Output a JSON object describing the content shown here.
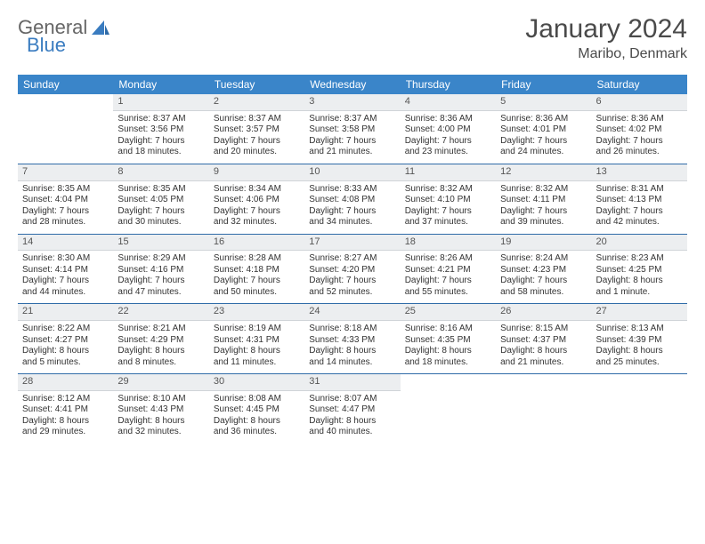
{
  "brand": {
    "part1": "General",
    "part2": "Blue"
  },
  "title": "January 2024",
  "location": "Maribo, Denmark",
  "colors": {
    "header_bg": "#3a85c9",
    "header_text": "#ffffff",
    "daynum_bg": "#eceef0",
    "week_border": "#2f6ba8",
    "logo_accent": "#3a7cc0"
  },
  "dayNames": [
    "Sunday",
    "Monday",
    "Tuesday",
    "Wednesday",
    "Thursday",
    "Friday",
    "Saturday"
  ],
  "weeks": [
    [
      null,
      {
        "n": "1",
        "sr": "Sunrise: 8:37 AM",
        "ss": "Sunset: 3:56 PM",
        "d1": "Daylight: 7 hours",
        "d2": "and 18 minutes."
      },
      {
        "n": "2",
        "sr": "Sunrise: 8:37 AM",
        "ss": "Sunset: 3:57 PM",
        "d1": "Daylight: 7 hours",
        "d2": "and 20 minutes."
      },
      {
        "n": "3",
        "sr": "Sunrise: 8:37 AM",
        "ss": "Sunset: 3:58 PM",
        "d1": "Daylight: 7 hours",
        "d2": "and 21 minutes."
      },
      {
        "n": "4",
        "sr": "Sunrise: 8:36 AM",
        "ss": "Sunset: 4:00 PM",
        "d1": "Daylight: 7 hours",
        "d2": "and 23 minutes."
      },
      {
        "n": "5",
        "sr": "Sunrise: 8:36 AM",
        "ss": "Sunset: 4:01 PM",
        "d1": "Daylight: 7 hours",
        "d2": "and 24 minutes."
      },
      {
        "n": "6",
        "sr": "Sunrise: 8:36 AM",
        "ss": "Sunset: 4:02 PM",
        "d1": "Daylight: 7 hours",
        "d2": "and 26 minutes."
      }
    ],
    [
      {
        "n": "7",
        "sr": "Sunrise: 8:35 AM",
        "ss": "Sunset: 4:04 PM",
        "d1": "Daylight: 7 hours",
        "d2": "and 28 minutes."
      },
      {
        "n": "8",
        "sr": "Sunrise: 8:35 AM",
        "ss": "Sunset: 4:05 PM",
        "d1": "Daylight: 7 hours",
        "d2": "and 30 minutes."
      },
      {
        "n": "9",
        "sr": "Sunrise: 8:34 AM",
        "ss": "Sunset: 4:06 PM",
        "d1": "Daylight: 7 hours",
        "d2": "and 32 minutes."
      },
      {
        "n": "10",
        "sr": "Sunrise: 8:33 AM",
        "ss": "Sunset: 4:08 PM",
        "d1": "Daylight: 7 hours",
        "d2": "and 34 minutes."
      },
      {
        "n": "11",
        "sr": "Sunrise: 8:32 AM",
        "ss": "Sunset: 4:10 PM",
        "d1": "Daylight: 7 hours",
        "d2": "and 37 minutes."
      },
      {
        "n": "12",
        "sr": "Sunrise: 8:32 AM",
        "ss": "Sunset: 4:11 PM",
        "d1": "Daylight: 7 hours",
        "d2": "and 39 minutes."
      },
      {
        "n": "13",
        "sr": "Sunrise: 8:31 AM",
        "ss": "Sunset: 4:13 PM",
        "d1": "Daylight: 7 hours",
        "d2": "and 42 minutes."
      }
    ],
    [
      {
        "n": "14",
        "sr": "Sunrise: 8:30 AM",
        "ss": "Sunset: 4:14 PM",
        "d1": "Daylight: 7 hours",
        "d2": "and 44 minutes."
      },
      {
        "n": "15",
        "sr": "Sunrise: 8:29 AM",
        "ss": "Sunset: 4:16 PM",
        "d1": "Daylight: 7 hours",
        "d2": "and 47 minutes."
      },
      {
        "n": "16",
        "sr": "Sunrise: 8:28 AM",
        "ss": "Sunset: 4:18 PM",
        "d1": "Daylight: 7 hours",
        "d2": "and 50 minutes."
      },
      {
        "n": "17",
        "sr": "Sunrise: 8:27 AM",
        "ss": "Sunset: 4:20 PM",
        "d1": "Daylight: 7 hours",
        "d2": "and 52 minutes."
      },
      {
        "n": "18",
        "sr": "Sunrise: 8:26 AM",
        "ss": "Sunset: 4:21 PM",
        "d1": "Daylight: 7 hours",
        "d2": "and 55 minutes."
      },
      {
        "n": "19",
        "sr": "Sunrise: 8:24 AM",
        "ss": "Sunset: 4:23 PM",
        "d1": "Daylight: 7 hours",
        "d2": "and 58 minutes."
      },
      {
        "n": "20",
        "sr": "Sunrise: 8:23 AM",
        "ss": "Sunset: 4:25 PM",
        "d1": "Daylight: 8 hours",
        "d2": "and 1 minute."
      }
    ],
    [
      {
        "n": "21",
        "sr": "Sunrise: 8:22 AM",
        "ss": "Sunset: 4:27 PM",
        "d1": "Daylight: 8 hours",
        "d2": "and 5 minutes."
      },
      {
        "n": "22",
        "sr": "Sunrise: 8:21 AM",
        "ss": "Sunset: 4:29 PM",
        "d1": "Daylight: 8 hours",
        "d2": "and 8 minutes."
      },
      {
        "n": "23",
        "sr": "Sunrise: 8:19 AM",
        "ss": "Sunset: 4:31 PM",
        "d1": "Daylight: 8 hours",
        "d2": "and 11 minutes."
      },
      {
        "n": "24",
        "sr": "Sunrise: 8:18 AM",
        "ss": "Sunset: 4:33 PM",
        "d1": "Daylight: 8 hours",
        "d2": "and 14 minutes."
      },
      {
        "n": "25",
        "sr": "Sunrise: 8:16 AM",
        "ss": "Sunset: 4:35 PM",
        "d1": "Daylight: 8 hours",
        "d2": "and 18 minutes."
      },
      {
        "n": "26",
        "sr": "Sunrise: 8:15 AM",
        "ss": "Sunset: 4:37 PM",
        "d1": "Daylight: 8 hours",
        "d2": "and 21 minutes."
      },
      {
        "n": "27",
        "sr": "Sunrise: 8:13 AM",
        "ss": "Sunset: 4:39 PM",
        "d1": "Daylight: 8 hours",
        "d2": "and 25 minutes."
      }
    ],
    [
      {
        "n": "28",
        "sr": "Sunrise: 8:12 AM",
        "ss": "Sunset: 4:41 PM",
        "d1": "Daylight: 8 hours",
        "d2": "and 29 minutes."
      },
      {
        "n": "29",
        "sr": "Sunrise: 8:10 AM",
        "ss": "Sunset: 4:43 PM",
        "d1": "Daylight: 8 hours",
        "d2": "and 32 minutes."
      },
      {
        "n": "30",
        "sr": "Sunrise: 8:08 AM",
        "ss": "Sunset: 4:45 PM",
        "d1": "Daylight: 8 hours",
        "d2": "and 36 minutes."
      },
      {
        "n": "31",
        "sr": "Sunrise: 8:07 AM",
        "ss": "Sunset: 4:47 PM",
        "d1": "Daylight: 8 hours",
        "d2": "and 40 minutes."
      },
      null,
      null,
      null
    ]
  ]
}
